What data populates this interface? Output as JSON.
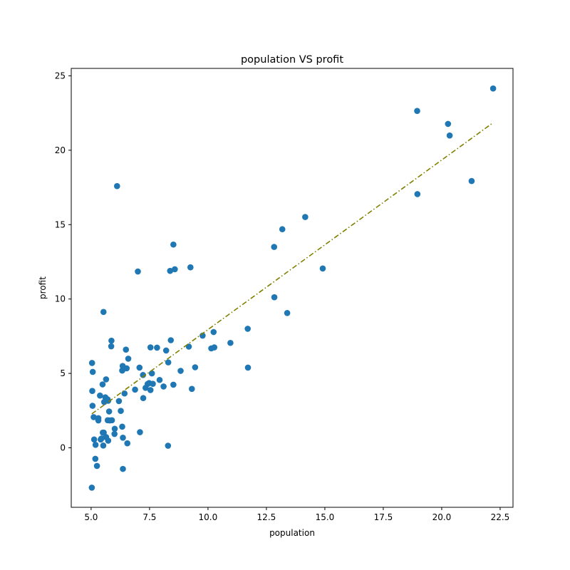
{
  "chart_data": {
    "type": "scatter",
    "title": "population VS profit",
    "xlabel": "population",
    "ylabel": "profit",
    "xlim": [
      4.15,
      23.05
    ],
    "ylim": [
      -4.0,
      25.5
    ],
    "xticks": [
      5.0,
      7.5,
      10.0,
      12.5,
      15.0,
      17.5,
      20.0,
      22.5
    ],
    "xtick_labels": [
      "5.0",
      "7.5",
      "10.0",
      "12.5",
      "15.0",
      "17.5",
      "20.0",
      "22.5"
    ],
    "yticks": [
      0,
      5,
      10,
      15,
      20,
      25
    ],
    "ytick_labels": [
      "0",
      "5",
      "10",
      "15",
      "20",
      "25"
    ],
    "grid": false,
    "colors": {
      "points": "#1f77b4",
      "fit_line": "#808000"
    },
    "series": [
      {
        "kind": "scatter",
        "x": [
          6.11,
          5.53,
          8.52,
          7.0,
          5.86,
          8.38,
          7.48,
          8.58,
          6.49,
          5.05,
          5.71,
          14.16,
          5.73,
          8.41,
          5.64,
          5.38,
          6.37,
          5.13,
          6.43,
          7.07,
          6.19,
          20.27,
          5.49,
          6.33,
          5.56,
          18.95,
          12.83,
          10.96,
          13.18,
          22.2,
          5.25,
          6.59,
          9.25,
          5.89,
          8.21,
          7.93,
          8.1,
          5.61,
          12.84,
          6.35,
          5.41,
          6.88,
          11.71,
          5.77,
          7.82,
          7.09,
          5.07,
          5.8,
          11.7,
          5.54,
          7.54,
          5.31,
          7.42,
          7.6,
          6.33,
          6.36,
          6.27,
          5.64,
          9.31,
          9.45,
          8.83,
          5.18,
          21.28,
          14.91,
          18.96,
          7.22,
          8.3,
          10.24,
          5.5,
          20.34,
          10.14,
          7.33,
          6.01,
          7.23,
          5.03,
          6.55,
          7.54,
          5.04,
          10.27,
          5.11,
          5.73,
          5.19,
          6.36,
          9.77,
          6.52,
          8.52,
          9.18,
          6.0,
          5.52,
          5.06,
          5.71,
          7.64,
          5.87,
          5.31,
          8.29,
          13.39,
          5.44
        ],
        "y": [
          17.59,
          9.13,
          13.66,
          11.85,
          6.82,
          11.89,
          4.35,
          12.0,
          6.6,
          3.82,
          3.25,
          15.51,
          3.16,
          7.23,
          0.72,
          3.51,
          5.3,
          0.56,
          3.65,
          5.39,
          3.14,
          21.77,
          4.26,
          5.19,
          3.08,
          22.64,
          13.5,
          7.05,
          14.69,
          24.15,
          -1.22,
          5.99,
          12.13,
          1.85,
          6.54,
          4.56,
          4.12,
          3.39,
          10.12,
          5.5,
          0.56,
          3.91,
          5.39,
          2.44,
          6.73,
          1.05,
          5.1,
          1.84,
          8.0,
          1.02,
          6.75,
          1.84,
          4.29,
          5.0,
          1.42,
          -1.42,
          2.48,
          4.6,
          3.96,
          5.41,
          5.17,
          -0.74,
          17.93,
          12.05,
          17.05,
          4.89,
          5.74,
          7.78,
          1.02,
          20.99,
          6.68,
          4.03,
          1.28,
          3.34,
          -2.68,
          0.3,
          3.88,
          5.7,
          6.75,
          2.06,
          0.48,
          0.2,
          0.68,
          7.54,
          5.34,
          4.24,
          6.8,
          0.93,
          0.15,
          2.82,
          1.85,
          4.3,
          7.2,
          1.99,
          0.14,
          9.06,
          0.62
        ]
      },
      {
        "kind": "line",
        "style": "dash-dot",
        "x": [
          5.03,
          22.2
        ],
        "y": [
          2.28,
          21.85
        ]
      }
    ]
  }
}
